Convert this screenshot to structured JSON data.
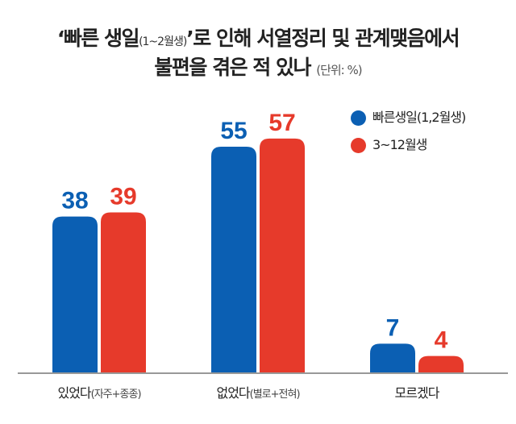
{
  "chart_data": {
    "type": "bar",
    "title_main": "‘빠른 생일",
    "title_paren": "(1~2월생)",
    "title_rest": "’로 인해 서열정리 및 관계맺음에서",
    "title_line2": "불편을 겪은 적 있나",
    "unit": "(단위: %)",
    "categories": [
      {
        "main": "있었다",
        "sub": "(자주+종종)"
      },
      {
        "main": "없었다",
        "sub": "(별로+전혀)"
      },
      {
        "main": "모르겠다",
        "sub": ""
      }
    ],
    "series": [
      {
        "name": "빠른생일(1,2월생)",
        "color": "#0b5fb3",
        "values": [
          38,
          55,
          7
        ]
      },
      {
        "name": "3~12월생",
        "color": "#e63a2b",
        "values": [
          39,
          57,
          4
        ]
      }
    ],
    "ylim": [
      0,
      60
    ],
    "legend": "top-right",
    "grid": false
  }
}
